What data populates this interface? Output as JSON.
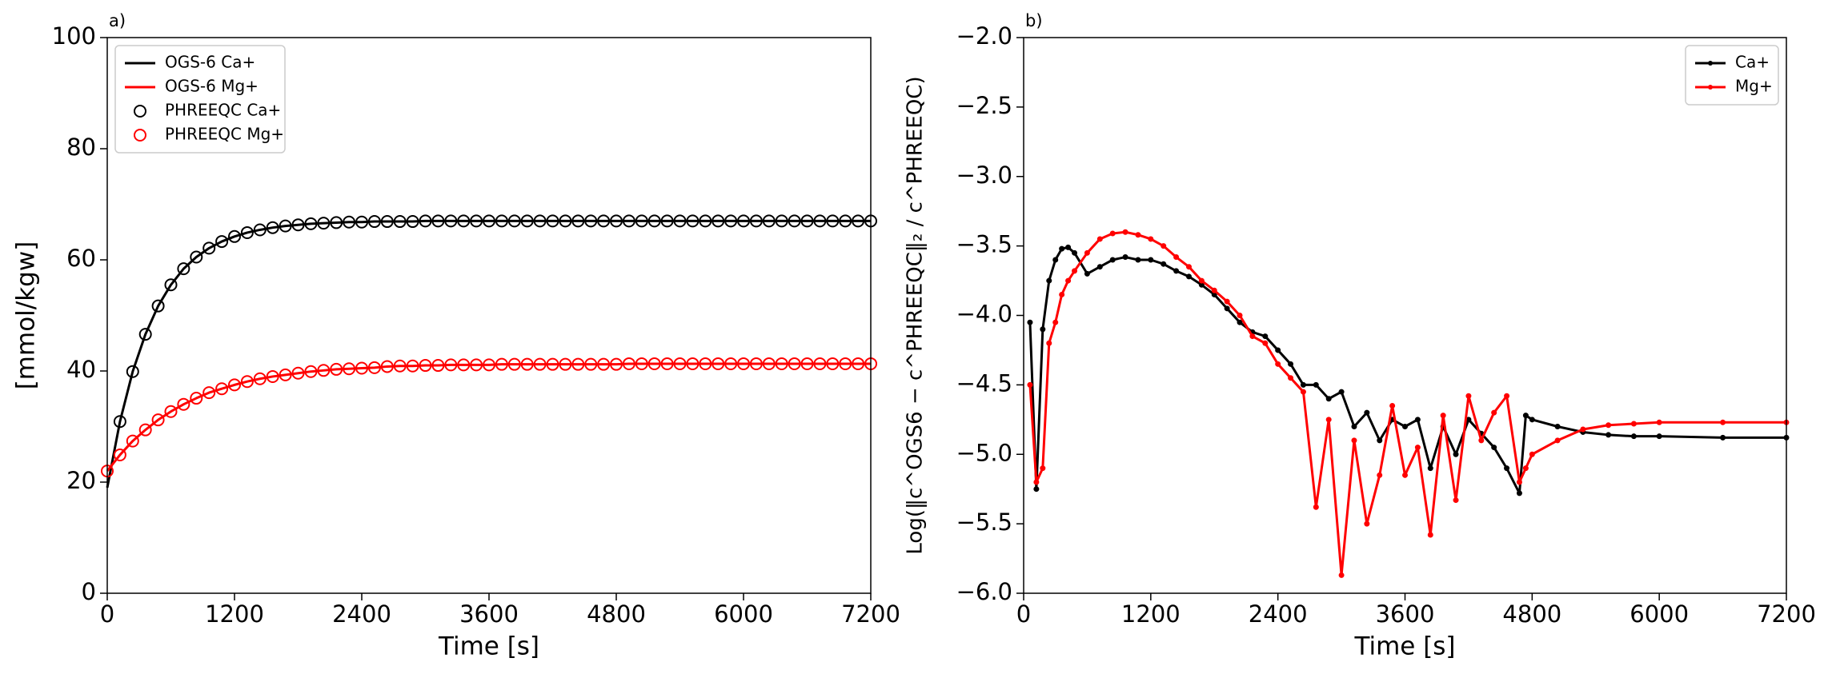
{
  "chart_data": [
    {
      "type": "line",
      "title": "a)",
      "x_label": "Time [s]",
      "y_label": "[mmol/kgw]",
      "xlim": [
        0,
        7200
      ],
      "xticks": [
        0,
        1200,
        2400,
        3600,
        4800,
        6000,
        7200
      ],
      "ylim": [
        0,
        100
      ],
      "yticks": [
        0,
        20,
        40,
        60,
        80,
        100
      ],
      "legend": "upper left",
      "x": [
        0,
        120,
        240,
        360,
        480,
        600,
        720,
        840,
        960,
        1080,
        1200,
        1320,
        1440,
        1560,
        1680,
        1800,
        1920,
        2040,
        2160,
        2280,
        2400,
        2520,
        2640,
        2760,
        2880,
        3000,
        3120,
        3240,
        3360,
        3480,
        3600,
        3720,
        3840,
        3960,
        4080,
        4200,
        4320,
        4440,
        4560,
        4680,
        4800,
        4920,
        5040,
        5160,
        5280,
        5400,
        5520,
        5640,
        5760,
        5880,
        6000,
        6120,
        6240,
        6360,
        6480,
        6600,
        6720,
        6840,
        6960,
        7080,
        7200
      ],
      "series": [
        {
          "name": "OGS-6 Ca+",
          "color": "#000000",
          "linestyle": "solid",
          "marker": "none",
          "values": [
            19.0,
            30.9,
            39.9,
            46.6,
            51.7,
            55.5,
            58.4,
            60.5,
            62.1,
            63.3,
            64.2,
            64.9,
            65.4,
            65.8,
            66.1,
            66.3,
            66.5,
            66.6,
            66.7,
            66.8,
            66.8,
            66.9,
            66.9,
            66.9,
            66.9,
            67.0,
            67.0,
            67.0,
            67.0,
            67.0,
            67.0,
            67.0,
            67.0,
            67.0,
            67.0,
            67.0,
            67.0,
            67.0,
            67.0,
            67.0,
            67.0,
            67.0,
            67.0,
            67.0,
            67.0,
            67.0,
            67.0,
            67.0,
            67.0,
            67.0,
            67.0,
            67.0,
            67.0,
            67.0,
            67.0,
            67.0,
            67.0,
            67.0,
            67.0,
            67.0,
            67.0
          ]
        },
        {
          "name": "OGS-6 Mg+",
          "color": "#ff0000",
          "linestyle": "solid",
          "marker": "none",
          "values": [
            22.0,
            24.9,
            27.4,
            29.4,
            31.2,
            32.7,
            34.0,
            35.1,
            36.1,
            36.8,
            37.5,
            38.1,
            38.6,
            39.0,
            39.3,
            39.6,
            39.9,
            40.1,
            40.3,
            40.4,
            40.5,
            40.6,
            40.8,
            40.9,
            40.9,
            41.0,
            41.0,
            41.1,
            41.1,
            41.1,
            41.1,
            41.2,
            41.2,
            41.2,
            41.2,
            41.2,
            41.2,
            41.2,
            41.2,
            41.2,
            41.2,
            41.3,
            41.3,
            41.3,
            41.3,
            41.3,
            41.3,
            41.3,
            41.3,
            41.3,
            41.3,
            41.3,
            41.3,
            41.3,
            41.3,
            41.3,
            41.3,
            41.3,
            41.3,
            41.3,
            41.3
          ]
        },
        {
          "name": "PHREEQC Ca+",
          "color": "#000000",
          "linestyle": "none",
          "marker": "circle-open",
          "values": [
            null,
            30.9,
            39.9,
            46.6,
            51.7,
            55.5,
            58.4,
            60.5,
            62.1,
            63.3,
            64.2,
            64.9,
            65.4,
            65.8,
            66.1,
            66.3,
            66.5,
            66.6,
            66.7,
            66.8,
            66.8,
            66.9,
            66.9,
            66.9,
            66.9,
            67.0,
            67.0,
            67.0,
            67.0,
            67.0,
            67.0,
            67.0,
            67.0,
            67.0,
            67.0,
            67.0,
            67.0,
            67.0,
            67.0,
            67.0,
            67.0,
            67.0,
            67.0,
            67.0,
            67.0,
            67.0,
            67.0,
            67.0,
            67.0,
            67.0,
            67.0,
            67.0,
            67.0,
            67.0,
            67.0,
            67.0,
            67.0,
            67.0,
            67.0,
            67.0,
            67.0
          ]
        },
        {
          "name": "PHREEQC Mg+",
          "color": "#ff0000",
          "linestyle": "none",
          "marker": "circle-open",
          "values": [
            22.0,
            24.9,
            27.4,
            29.4,
            31.2,
            32.7,
            34.0,
            35.1,
            36.1,
            36.8,
            37.5,
            38.1,
            38.6,
            39.0,
            39.3,
            39.6,
            39.9,
            40.1,
            40.3,
            40.4,
            40.5,
            40.6,
            40.8,
            40.9,
            40.9,
            41.0,
            41.0,
            41.1,
            41.1,
            41.1,
            41.1,
            41.2,
            41.2,
            41.2,
            41.2,
            41.2,
            41.2,
            41.2,
            41.2,
            41.2,
            41.2,
            41.3,
            41.3,
            41.3,
            41.3,
            41.3,
            41.3,
            41.3,
            41.3,
            41.3,
            41.3,
            41.3,
            41.3,
            41.3,
            41.3,
            41.3,
            41.3,
            41.3,
            41.3,
            41.3,
            41.3
          ]
        }
      ]
    },
    {
      "type": "line",
      "title": "b)",
      "x_label": "Time [s]",
      "y_label": "Log(‖c^OGS6 − c^PHREEQC‖₂ / c^PHREEQC)",
      "xlim": [
        0,
        7200
      ],
      "xticks": [
        0,
        1200,
        2400,
        3600,
        4800,
        6000,
        7200
      ],
      "ylim": [
        -6,
        -2
      ],
      "yticks": [
        {
          "value": -6,
          "label": "−6.0"
        },
        {
          "value": -5.5,
          "label": "−5.5"
        },
        {
          "value": -5,
          "label": "−5.0"
        },
        {
          "value": -4.5,
          "label": "−4.5"
        },
        {
          "value": -4,
          "label": "−4.0"
        },
        {
          "value": -3.5,
          "label": "−3.5"
        },
        {
          "value": -3,
          "label": "−3.0"
        },
        {
          "value": -2.5,
          "label": "−2.5"
        },
        {
          "value": -2,
          "label": "−2.0"
        }
      ],
      "legend": "upper right",
      "x": [
        60,
        120,
        180,
        240,
        300,
        360,
        420,
        480,
        600,
        720,
        840,
        960,
        1080,
        1200,
        1320,
        1440,
        1560,
        1680,
        1800,
        1920,
        2040,
        2160,
        2280,
        2400,
        2520,
        2640,
        2760,
        2880,
        3000,
        3120,
        3240,
        3360,
        3480,
        3600,
        3720,
        3840,
        3960,
        4080,
        4200,
        4320,
        4440,
        4560,
        4680,
        4740,
        4800,
        5040,
        5280,
        5520,
        5760,
        6000,
        6600,
        7200
      ],
      "series": [
        {
          "name": "Ca+",
          "color": "#000000",
          "linestyle": "solid",
          "marker": "dot",
          "values": [
            -4.05,
            -5.25,
            -4.1,
            -3.75,
            -3.6,
            -3.52,
            -3.51,
            -3.55,
            -3.7,
            -3.65,
            -3.6,
            -3.58,
            -3.6,
            -3.6,
            -3.63,
            -3.68,
            -3.72,
            -3.78,
            -3.85,
            -3.95,
            -4.05,
            -4.12,
            -4.15,
            -4.25,
            -4.35,
            -4.5,
            -4.5,
            -4.6,
            -4.55,
            -4.8,
            -4.7,
            -4.9,
            -4.75,
            -4.8,
            -4.75,
            -5.1,
            -4.8,
            -5.0,
            -4.75,
            -4.85,
            -4.95,
            -5.1,
            -5.28,
            -4.72,
            -4.75,
            -4.8,
            -4.84,
            -4.86,
            -4.87,
            -4.87,
            -4.88,
            -4.88
          ]
        },
        {
          "name": "Mg+",
          "color": "#ff0000",
          "linestyle": "solid",
          "marker": "dot",
          "values": [
            -4.5,
            -5.2,
            -5.1,
            -4.2,
            -4.05,
            -3.85,
            -3.75,
            -3.68,
            -3.55,
            -3.45,
            -3.41,
            -3.4,
            -3.42,
            -3.45,
            -3.5,
            -3.58,
            -3.65,
            -3.75,
            -3.82,
            -3.9,
            -4.0,
            -4.15,
            -4.2,
            -4.35,
            -4.45,
            -4.55,
            -5.38,
            -4.75,
            -5.87,
            -4.9,
            -5.5,
            -5.15,
            -4.65,
            -5.15,
            -4.95,
            -5.58,
            -4.72,
            -5.33,
            -4.58,
            -4.9,
            -4.7,
            -4.58,
            -5.2,
            -5.1,
            -5.0,
            -4.9,
            -4.82,
            -4.79,
            -4.78,
            -4.77,
            -4.77,
            -4.77
          ]
        }
      ]
    }
  ]
}
